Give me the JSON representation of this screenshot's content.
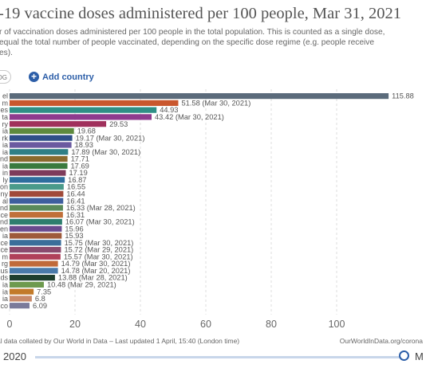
{
  "header": {
    "title": "-19 vaccine doses administered per 100 people, Mar 31, 2021",
    "subtitle_lines": [
      "r of vaccination doses administered per 100 people in the total population. This is counted as a single dose,",
      "equal the total number of people vaccinated, depending on the specific dose regime (e.g. people receive",
      "es)."
    ]
  },
  "controls": {
    "log_toggle": "OG",
    "add_country": "Add country"
  },
  "footer": {
    "source": "al data collated by Our World in Data – Last updated 1 April, 15:40 (London time)",
    "url": "OurWorldInData.org/corona"
  },
  "timeline": {
    "start": "2020",
    "end": "M"
  },
  "colors": {
    "link": "#2c5ea8",
    "axis_text": "#666666"
  },
  "chart_data": {
    "type": "bar",
    "orientation": "horizontal",
    "categories": [
      "el",
      "m",
      "es",
      "ta",
      "ry",
      "ia",
      "rk",
      "ia",
      "ia",
      "nd",
      "ia",
      "in",
      "ly",
      "on",
      "ny",
      "al",
      "nd",
      "ce",
      "nd",
      "en",
      "ia",
      "ce",
      "ce",
      "m",
      "rg",
      "us",
      "ds",
      "ia",
      "ia",
      "ia",
      "co"
    ],
    "values": [
      115.88,
      51.58,
      44.93,
      43.42,
      29.53,
      19.68,
      19.17,
      18.93,
      17.89,
      17.71,
      17.69,
      17.19,
      16.87,
      16.55,
      16.44,
      16.41,
      16.33,
      16.31,
      16.07,
      15.96,
      15.93,
      15.75,
      15.72,
      15.57,
      14.79,
      14.78,
      13.88,
      10.48,
      7.35,
      6.8,
      6.09
    ],
    "value_labels": [
      "115.88",
      "51.58 (Mar 30, 2021)",
      "44.93",
      "43.42 (Mar 30, 2021)",
      "29.53",
      "19.68",
      "19.17 (Mar 30, 2021)",
      "18.93",
      "17.89 (Mar 30, 2021)",
      "17.71",
      "17.69",
      "17.19",
      "16.87",
      "16.55",
      "16.44",
      "16.41",
      "16.33 (Mar 28, 2021)",
      "16.31",
      "16.07 (Mar 30, 2021)",
      "15.96",
      "15.93",
      "15.75 (Mar 30, 2021)",
      "15.72 (Mar 29, 2021)",
      "15.57 (Mar 30, 2021)",
      "14.79 (Mar 30, 2021)",
      "14.78 (Mar 20, 2021)",
      "13.88 (Mar 28, 2021)",
      "10.48 (Mar 29, 2021)",
      "7.35",
      "6.8",
      "6.09"
    ],
    "colors": [
      "#5b6b7b",
      "#c9572e",
      "#2f8f86",
      "#8e3b8e",
      "#a0305c",
      "#5e8a3e",
      "#2f4f88",
      "#6b5aa0",
      "#2f7f86",
      "#8a6a2e",
      "#3a7a3e",
      "#7e3b5b",
      "#2e6e9e",
      "#4a9a8a",
      "#a04a3a",
      "#3e5e9e",
      "#5a8a5a",
      "#c0703a",
      "#2e7e6e",
      "#6a4a8e",
      "#9e5a3a",
      "#3a6e9a",
      "#8a4a6e",
      "#b0405a",
      "#c06a3a",
      "#4a7aaa",
      "#1e3e2e",
      "#6e9a4e",
      "#c27a2a",
      "#c88a6a",
      "#7a7a9a"
    ],
    "xticks": [
      0,
      20,
      40,
      60,
      80,
      100
    ],
    "xlim": [
      0,
      117
    ],
    "grid": true
  }
}
